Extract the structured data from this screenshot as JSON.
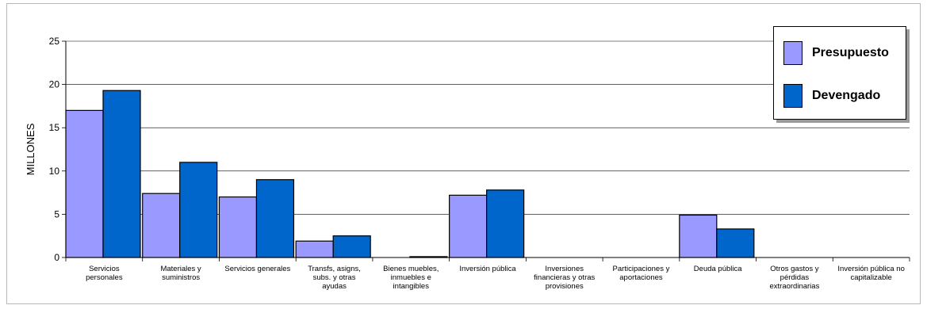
{
  "chart_data": {
    "type": "bar",
    "ylabel": "MILLONES",
    "ylim": [
      0,
      25
    ],
    "yticks": [
      0,
      5,
      10,
      15,
      20,
      25
    ],
    "grid": true,
    "legend_position": "top-right",
    "categories": [
      [
        "Servicios",
        "personales"
      ],
      [
        "Materiales y",
        "suministros"
      ],
      [
        "Servicios generales"
      ],
      [
        "Transfs, asigns,",
        "subs. y otras",
        "ayudas"
      ],
      [
        "Bienes muebles,",
        "inmuebles e",
        "intangibles"
      ],
      [
        "Inversión pública"
      ],
      [
        "Inversiones",
        "financieras y otras",
        "provisiones"
      ],
      [
        "Participaciones y",
        "aportaciones"
      ],
      [
        "Deuda pública"
      ],
      [
        "Otros gastos y",
        "pérdidas",
        "extraordinarias"
      ],
      [
        "Inversión pública no",
        "capitalizable"
      ]
    ],
    "series": [
      {
        "name": "Presupuesto",
        "color": "#9999ff",
        "values": [
          17.0,
          7.4,
          7.0,
          1.9,
          0.0,
          7.2,
          0.0,
          0.0,
          4.9,
          0.0,
          0.0
        ]
      },
      {
        "name": "Devengado",
        "color": "#0066cc",
        "values": [
          19.3,
          11.0,
          9.0,
          2.5,
          0.1,
          7.8,
          0.0,
          0.0,
          3.3,
          0.0,
          0.0
        ]
      }
    ]
  }
}
